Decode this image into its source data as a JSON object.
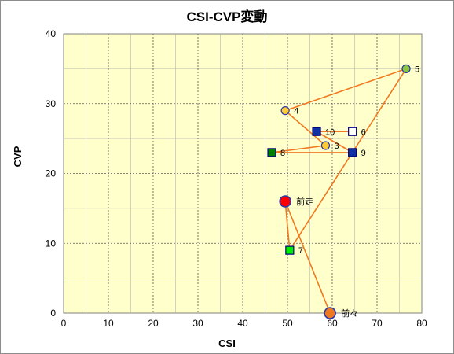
{
  "chart_data": {
    "type": "scatter",
    "title": "CSI-CVP変動",
    "xlabel": "CSI",
    "ylabel": "CVP",
    "xlim": [
      0,
      80
    ],
    "ylim": [
      0,
      40
    ],
    "x_ticks": [
      "0",
      "10",
      "20",
      "30",
      "40",
      "50",
      "60",
      "70",
      "80"
    ],
    "y_ticks": [
      "0",
      "10",
      "20",
      "30",
      "40"
    ],
    "grid": true,
    "background_color": "#ffffcc",
    "line_color": "#f07820",
    "path_order": [
      "前々",
      "前走",
      "7",
      "5",
      "4",
      "3",
      "8",
      "9",
      "10",
      "6"
    ],
    "points": [
      {
        "label": "前々",
        "x": 59.5,
        "y": 0,
        "marker": "circle-large",
        "fill": "#f07820",
        "stroke": "#2a3aa8"
      },
      {
        "label": "前走",
        "x": 49.5,
        "y": 16,
        "marker": "circle-large",
        "fill": "#ff0000",
        "stroke": "#2a3aa8"
      },
      {
        "label": "7",
        "x": 50.5,
        "y": 9,
        "marker": "square",
        "fill": "#00ee00",
        "stroke": "#000080"
      },
      {
        "label": "5",
        "x": 76.5,
        "y": 35,
        "marker": "circle",
        "fill": "#8cc63f",
        "stroke": "#2a3aa8"
      },
      {
        "label": "4",
        "x": 49.5,
        "y": 29,
        "marker": "circle",
        "fill": "#ffcc33",
        "stroke": "#2a3aa8"
      },
      {
        "label": "3",
        "x": 58.5,
        "y": 24,
        "marker": "circle",
        "fill": "#ffcc33",
        "stroke": "#2a3aa8"
      },
      {
        "label": "8",
        "x": 46.5,
        "y": 23,
        "marker": "square",
        "fill": "#008000",
        "stroke": "#000080"
      },
      {
        "label": "9",
        "x": 64.5,
        "y": 23,
        "marker": "square",
        "fill": "#1030a0",
        "stroke": "#000080"
      },
      {
        "label": "10",
        "x": 56.5,
        "y": 26,
        "marker": "square",
        "fill": "#1030a0",
        "stroke": "#000080"
      },
      {
        "label": "6",
        "x": 64.5,
        "y": 26,
        "marker": "square",
        "fill": "#ffffff",
        "stroke": "#000080"
      }
    ]
  }
}
